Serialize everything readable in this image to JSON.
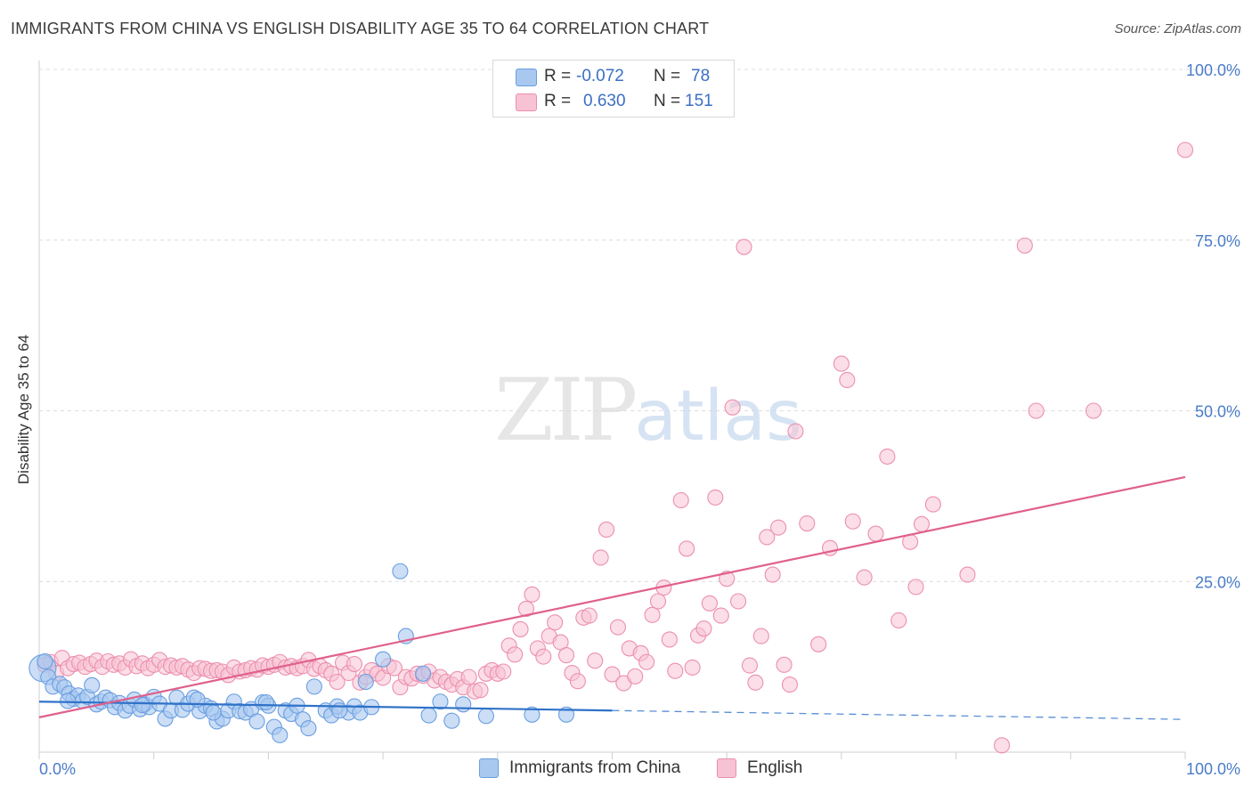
{
  "header": {
    "title": "IMMIGRANTS FROM CHINA VS ENGLISH DISABILITY AGE 35 TO 64 CORRELATION CHART",
    "source": "Source: ZipAtlas.com"
  },
  "watermark": {
    "zip": "ZIP",
    "atlas": "atlas"
  },
  "legend": {
    "rows": [
      {
        "r_label": "R =",
        "r_value": "-0.072",
        "n_label": "N =",
        "n_value": "78"
      },
      {
        "r_label": "R =",
        "r_value": "0.630",
        "n_label": "N =",
        "n_value": "151"
      }
    ]
  },
  "colors": {
    "blue_fill": "#a9c8f0",
    "blue_stroke": "#6a9ee0",
    "blue_line": "#2f72c8",
    "pink_fill": "#f7c2d3",
    "pink_stroke": "#ec8fae",
    "pink_line": "#e0608c",
    "tick_text": "#4a7cc9",
    "grid": "#dcdcdc"
  },
  "chart_data": {
    "type": "scatter",
    "title": "IMMIGRANTS FROM CHINA VS ENGLISH DISABILITY AGE 35 TO 64 CORRELATION CHART",
    "xlabel": "",
    "ylabel": "Disability Age 35 to 64",
    "xlim": [
      0,
      100
    ],
    "ylim": [
      0,
      100
    ],
    "x_tick_labels": [
      "0.0%",
      "100.0%"
    ],
    "y_tick_labels": [
      "25.0%",
      "50.0%",
      "75.0%",
      "100.0%"
    ],
    "y_ticks": [
      25,
      50,
      75,
      100
    ],
    "legend_position": "top-center",
    "series": [
      {
        "name": "Immigrants from China",
        "r": -0.072,
        "n": 78,
        "trend": {
          "x0": 0,
          "y0": 7.4,
          "x1": 50,
          "y1": 6.1,
          "dashed_to_x": 100,
          "dashed_to_y": 4.8
        },
        "points": [
          [
            0.3,
            12.3
          ],
          [
            0.8,
            11.0
          ],
          [
            1.2,
            9.6
          ],
          [
            1.8,
            10.0
          ],
          [
            2.2,
            9.5
          ],
          [
            2.6,
            8.6
          ],
          [
            3.0,
            7.8
          ],
          [
            3.4,
            8.3
          ],
          [
            3.8,
            7.5
          ],
          [
            4.2,
            8.1
          ],
          [
            4.6,
            9.8
          ],
          [
            5.0,
            7.0
          ],
          [
            5.4,
            7.4
          ],
          [
            5.8,
            8.0
          ],
          [
            6.2,
            7.6
          ],
          [
            6.6,
            6.6
          ],
          [
            7.0,
            7.2
          ],
          [
            7.5,
            6.1
          ],
          [
            7.9,
            6.8
          ],
          [
            8.3,
            7.7
          ],
          [
            8.8,
            6.3
          ],
          [
            9.2,
            7.0
          ],
          [
            9.6,
            6.6
          ],
          [
            10.0,
            8.1
          ],
          [
            10.5,
            7.1
          ],
          [
            11.0,
            4.9
          ],
          [
            11.5,
            6.1
          ],
          [
            12.0,
            8.0
          ],
          [
            12.5,
            6.2
          ],
          [
            13.0,
            7.1
          ],
          [
            13.5,
            8.0
          ],
          [
            14.0,
            6.0
          ],
          [
            14.5,
            6.8
          ],
          [
            15.0,
            6.4
          ],
          [
            15.5,
            4.5
          ],
          [
            16.0,
            4.9
          ],
          [
            16.5,
            6.1
          ],
          [
            17.0,
            7.4
          ],
          [
            17.5,
            6.0
          ],
          [
            18.0,
            5.8
          ],
          [
            18.5,
            6.3
          ],
          [
            19.0,
            4.5
          ],
          [
            19.5,
            7.3
          ],
          [
            20.0,
            6.8
          ],
          [
            20.5,
            3.7
          ],
          [
            21.0,
            2.5
          ],
          [
            21.5,
            6.1
          ],
          [
            22.0,
            5.6
          ],
          [
            22.5,
            6.8
          ],
          [
            23.0,
            4.8
          ],
          [
            23.5,
            3.5
          ],
          [
            24.0,
            9.6
          ],
          [
            25.0,
            6.1
          ],
          [
            25.5,
            5.4
          ],
          [
            26.0,
            6.7
          ],
          [
            27.0,
            5.8
          ],
          [
            27.5,
            6.7
          ],
          [
            28.0,
            5.8
          ],
          [
            28.5,
            10.3
          ],
          [
            29.0,
            6.6
          ],
          [
            30.0,
            13.6
          ],
          [
            31.5,
            26.5
          ],
          [
            32.0,
            17.0
          ],
          [
            34.0,
            5.4
          ],
          [
            35.0,
            7.4
          ],
          [
            36.0,
            4.6
          ],
          [
            37.0,
            7.0
          ],
          [
            39.0,
            5.3
          ],
          [
            46.0,
            5.5
          ],
          [
            0.5,
            13.3
          ],
          [
            2.5,
            7.5
          ],
          [
            9.0,
            6.9
          ],
          [
            15.2,
            5.8
          ],
          [
            26.2,
            6.1
          ],
          [
            33.5,
            11.5
          ],
          [
            13.8,
            7.7
          ],
          [
            19.8,
            7.3
          ],
          [
            43.0,
            5.5
          ]
        ]
      },
      {
        "name": "English",
        "r": 0.63,
        "n": 151,
        "trend": {
          "x0": 0,
          "y0": 5.1,
          "x1": 100,
          "y1": 40.3
        },
        "points": [
          [
            0.5,
            12.8
          ],
          [
            1.0,
            13.2
          ],
          [
            1.5,
            11.6
          ],
          [
            2.0,
            13.8
          ],
          [
            2.5,
            12.3
          ],
          [
            3.0,
            12.9
          ],
          [
            3.5,
            13.1
          ],
          [
            4.0,
            12.5
          ],
          [
            4.5,
            12.9
          ],
          [
            5.0,
            13.4
          ],
          [
            5.5,
            12.5
          ],
          [
            6.0,
            13.3
          ],
          [
            6.5,
            12.8
          ],
          [
            7.0,
            13.0
          ],
          [
            7.5,
            12.4
          ],
          [
            8.0,
            13.6
          ],
          [
            8.5,
            12.6
          ],
          [
            9.0,
            13.0
          ],
          [
            9.5,
            12.3
          ],
          [
            10.0,
            12.8
          ],
          [
            10.5,
            13.5
          ],
          [
            11.0,
            12.5
          ],
          [
            11.5,
            12.7
          ],
          [
            12.0,
            12.4
          ],
          [
            12.5,
            12.6
          ],
          [
            13.0,
            12.1
          ],
          [
            13.5,
            11.6
          ],
          [
            14.0,
            12.3
          ],
          [
            14.5,
            12.2
          ],
          [
            15.0,
            11.9
          ],
          [
            15.5,
            12.0
          ],
          [
            16.0,
            11.8
          ],
          [
            16.5,
            11.3
          ],
          [
            17.0,
            12.4
          ],
          [
            17.5,
            11.8
          ],
          [
            18.0,
            12.0
          ],
          [
            18.5,
            12.3
          ],
          [
            19.0,
            12.1
          ],
          [
            19.5,
            12.7
          ],
          [
            20.0,
            12.5
          ],
          [
            20.5,
            12.8
          ],
          [
            21.0,
            13.2
          ],
          [
            21.5,
            12.4
          ],
          [
            22.0,
            12.6
          ],
          [
            22.5,
            12.3
          ],
          [
            23.0,
            12.6
          ],
          [
            23.5,
            13.5
          ],
          [
            24.0,
            12.2
          ],
          [
            24.5,
            12.6
          ],
          [
            25.0,
            12.0
          ],
          [
            25.5,
            11.5
          ],
          [
            26.0,
            10.3
          ],
          [
            26.5,
            13.1
          ],
          [
            27.0,
            11.6
          ],
          [
            27.5,
            12.9
          ],
          [
            28.0,
            10.2
          ],
          [
            28.5,
            11.0
          ],
          [
            29.0,
            12.0
          ],
          [
            29.5,
            11.5
          ],
          [
            30.0,
            10.9
          ],
          [
            30.5,
            12.6
          ],
          [
            31.0,
            12.3
          ],
          [
            31.5,
            9.5
          ],
          [
            32.0,
            11.0
          ],
          [
            32.5,
            10.8
          ],
          [
            33.0,
            11.5
          ],
          [
            33.5,
            11.2
          ],
          [
            34.0,
            11.8
          ],
          [
            34.5,
            10.5
          ],
          [
            35.0,
            11.0
          ],
          [
            35.5,
            10.3
          ],
          [
            36.0,
            9.9
          ],
          [
            36.5,
            10.7
          ],
          [
            37.0,
            9.5
          ],
          [
            37.5,
            11.0
          ],
          [
            38.0,
            8.9
          ],
          [
            38.5,
            9.1
          ],
          [
            39.0,
            11.5
          ],
          [
            39.5,
            12.0
          ],
          [
            40.0,
            11.5
          ],
          [
            40.5,
            11.8
          ],
          [
            41.0,
            15.6
          ],
          [
            41.5,
            14.3
          ],
          [
            42.0,
            18.0
          ],
          [
            42.5,
            21.0
          ],
          [
            43.0,
            23.1
          ],
          [
            43.5,
            15.2
          ],
          [
            44.0,
            14.0
          ],
          [
            44.5,
            17.0
          ],
          [
            45.0,
            19.0
          ],
          [
            45.5,
            16.1
          ],
          [
            46.0,
            14.2
          ],
          [
            46.5,
            11.6
          ],
          [
            47.0,
            10.4
          ],
          [
            47.5,
            19.7
          ],
          [
            48.0,
            20.0
          ],
          [
            48.5,
            13.4
          ],
          [
            49.0,
            28.5
          ],
          [
            49.5,
            32.6
          ],
          [
            50.0,
            11.4
          ],
          [
            50.5,
            18.3
          ],
          [
            51.0,
            10.1
          ],
          [
            51.5,
            15.2
          ],
          [
            52.0,
            11.1
          ],
          [
            52.5,
            14.5
          ],
          [
            53.0,
            13.2
          ],
          [
            53.5,
            20.1
          ],
          [
            54.0,
            22.1
          ],
          [
            54.5,
            24.1
          ],
          [
            55.0,
            16.5
          ],
          [
            55.5,
            11.9
          ],
          [
            56.0,
            36.9
          ],
          [
            56.5,
            29.8
          ],
          [
            57.0,
            12.4
          ],
          [
            57.5,
            17.1
          ],
          [
            58.0,
            18.1
          ],
          [
            58.5,
            21.8
          ],
          [
            59.0,
            37.3
          ],
          [
            59.5,
            20.0
          ],
          [
            60.0,
            25.4
          ],
          [
            60.5,
            50.5
          ],
          [
            61.0,
            22.1
          ],
          [
            61.5,
            74.0
          ],
          [
            62.0,
            12.7
          ],
          [
            62.5,
            10.2
          ],
          [
            63.0,
            17.0
          ],
          [
            63.5,
            31.5
          ],
          [
            64.0,
            26.0
          ],
          [
            64.5,
            32.9
          ],
          [
            65.0,
            12.8
          ],
          [
            65.5,
            9.9
          ],
          [
            66.0,
            47.0
          ],
          [
            67.0,
            33.5
          ],
          [
            68.0,
            15.8
          ],
          [
            69.0,
            29.9
          ],
          [
            70.0,
            56.9
          ],
          [
            70.5,
            54.5
          ],
          [
            71.0,
            33.8
          ],
          [
            72.0,
            25.6
          ],
          [
            73.0,
            32.0
          ],
          [
            74.0,
            43.3
          ],
          [
            75.0,
            19.3
          ],
          [
            76.0,
            30.8
          ],
          [
            76.5,
            24.2
          ],
          [
            77.0,
            33.4
          ],
          [
            78.0,
            36.3
          ],
          [
            81.0,
            26.0
          ],
          [
            84.0,
            1.0
          ],
          [
            86.0,
            74.2
          ],
          [
            87.0,
            50.0
          ],
          [
            92.0,
            50.0
          ],
          [
            100.0,
            88.2
          ]
        ]
      }
    ]
  },
  "bottom_legend": {
    "items": [
      {
        "label": "Immigrants from China"
      },
      {
        "label": "English"
      }
    ]
  }
}
